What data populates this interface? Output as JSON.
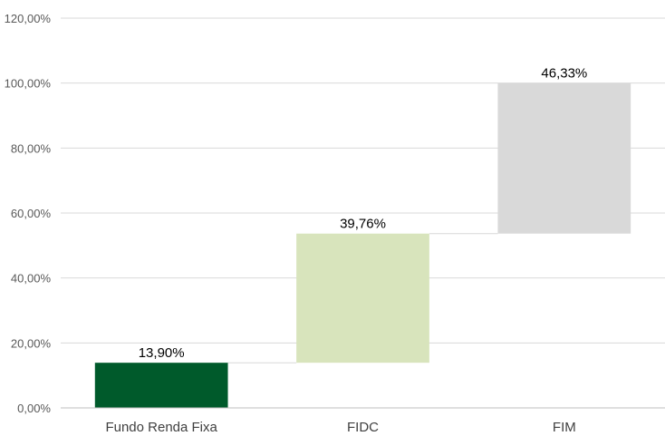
{
  "chart_data": {
    "type": "bar",
    "subtype": "waterfall",
    "categories": [
      "Fundo Renda Fixa",
      "FIDC",
      "FIM"
    ],
    "values": [
      13.9,
      39.76,
      46.33
    ],
    "value_labels": [
      "13,90%",
      "39,76%",
      "46,33%"
    ],
    "colors": [
      "#005a2b",
      "#d8e4bc",
      "#d9d9d9"
    ],
    "title": "",
    "xlabel": "",
    "ylabel": "",
    "ylim": [
      0,
      120
    ],
    "yticks": [
      0,
      20,
      40,
      60,
      80,
      100,
      120
    ],
    "ytick_labels": [
      "0,00%",
      "20,00%",
      "40,00%",
      "60,00%",
      "80,00%",
      "100,00%",
      "120,00%"
    ],
    "grid": true,
    "legend": "none"
  }
}
